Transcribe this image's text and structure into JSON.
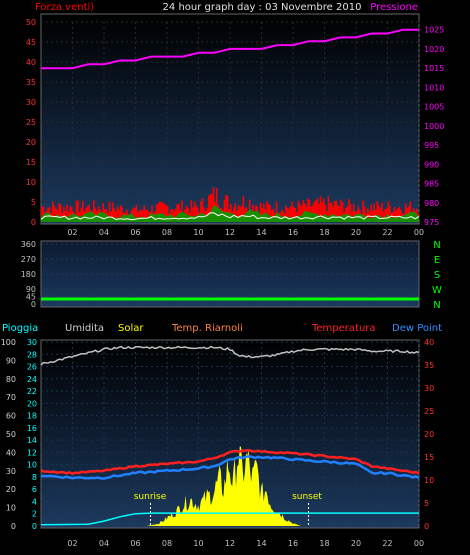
{
  "header": {
    "left_label": "Forza venti)",
    "title": "24 hour graph day : 03 Novembre 2010",
    "right_label": "Pressione"
  },
  "legend_bottom": {
    "pioggia": "Pioggia",
    "umidita": "Umidita",
    "solar": "Solar",
    "temp_riarnoli": "Temp. Riarnoli",
    "temperatura": "Temperatura",
    "dew_point": "Dew Point"
  },
  "annotations": {
    "sunrise": "sunrise",
    "sunset": "sunset"
  },
  "colors": {
    "wind": "#ff0000",
    "wind_avg": "#ffffff",
    "gust": "#00a000",
    "pressure": "#ff00ff",
    "direction": "#00ff00",
    "temperature": "#ff2020",
    "dew_point": "#2080ff",
    "humidity": "#c0c0c0",
    "solar": "#ffff00",
    "rain": "#00ffff",
    "panel_top": "#000000",
    "panel_bottom": "#1c3a60"
  },
  "chart_data": [
    {
      "type": "line",
      "title": "24 hour graph day : 03 Novembre 2010",
      "x_ticks": [
        "02",
        "04",
        "06",
        "08",
        "10",
        "12",
        "14",
        "16",
        "18",
        "20",
        "22",
        "00"
      ],
      "left_axis": {
        "ylim": [
          0,
          50
        ],
        "ticks": [
          0,
          5,
          10,
          15,
          20,
          25,
          30,
          35,
          40,
          45,
          50
        ]
      },
      "right_axis": {
        "ylim": [
          975,
          1027
        ],
        "ticks": [
          975,
          980,
          985,
          990,
          995,
          1000,
          1005,
          1010,
          1015,
          1020,
          1025
        ]
      },
      "series": [
        {
          "name": "Forza venti)",
          "axis": "left",
          "style": "bars",
          "x": [
            0,
            2,
            4,
            6,
            8,
            10,
            11,
            12,
            13,
            14,
            16,
            18,
            20,
            22,
            24
          ],
          "values": [
            5,
            5,
            5,
            4,
            5,
            5,
            9,
            6,
            7,
            5,
            5,
            6,
            5,
            5,
            5
          ]
        },
        {
          "name": "Pressione",
          "axis": "right",
          "x": [
            0,
            1,
            2,
            3,
            4,
            5,
            6,
            7,
            8,
            9,
            10,
            11,
            12,
            13,
            14,
            15,
            16,
            17,
            18,
            19,
            20,
            21,
            22,
            23,
            24
          ],
          "values": [
            1015,
            1015,
            1015,
            1016,
            1016,
            1017,
            1017,
            1018,
            1018,
            1018,
            1019,
            1019,
            1020,
            1020,
            1020,
            1021,
            1021,
            1022,
            1022,
            1023,
            1023,
            1024,
            1024,
            1025,
            1025
          ]
        }
      ]
    },
    {
      "type": "line",
      "x_ticks": [],
      "left_axis": {
        "ylim": [
          0,
          360
        ],
        "ticks": [
          0,
          45,
          90,
          180,
          270,
          360
        ]
      },
      "right_axis": {
        "labels": [
          "N",
          "W",
          "S",
          "E",
          "N"
        ]
      },
      "series": [
        {
          "name": "direction",
          "x": [
            0,
            24
          ],
          "values": [
            30,
            30
          ]
        }
      ]
    },
    {
      "type": "line",
      "x_ticks": [
        "02",
        "04",
        "06",
        "08",
        "10",
        "12",
        "14",
        "16",
        "18",
        "20",
        "22",
        "00"
      ],
      "left_outer_axis": {
        "ylim": [
          0,
          100
        ],
        "ticks": [
          0,
          10,
          20,
          30,
          40,
          50,
          60,
          70,
          80,
          90,
          100
        ]
      },
      "left_inner_axis": {
        "ylim": [
          0,
          30
        ],
        "ticks": [
          0,
          2,
          4,
          6,
          8,
          10,
          12,
          14,
          16,
          18,
          20,
          22,
          24,
          26,
          28,
          30
        ]
      },
      "right_axis": {
        "ylim": [
          0,
          40
        ],
        "ticks": [
          0,
          5,
          10,
          15,
          20,
          25,
          30,
          35,
          40
        ]
      },
      "series": [
        {
          "name": "Umidita",
          "axis": "left_outer",
          "x": [
            0,
            1,
            2,
            3,
            4,
            5,
            6,
            7,
            8,
            9,
            10,
            11,
            12,
            12.5,
            13,
            14,
            15,
            16,
            17,
            18,
            19,
            20,
            21,
            22,
            23,
            24
          ],
          "values": [
            88,
            90,
            92,
            94,
            96,
            97,
            97,
            97,
            97,
            97,
            97,
            97,
            96,
            93,
            92,
            92,
            93,
            95,
            96,
            96,
            96,
            96,
            95,
            95,
            95,
            94
          ]
        },
        {
          "name": "Temperatura",
          "axis": "right",
          "x": [
            0,
            2,
            4,
            6,
            8,
            10,
            11,
            12,
            13,
            14,
            15,
            16,
            17,
            18,
            20,
            21,
            22,
            23,
            24
          ],
          "values": [
            12,
            11.5,
            12,
            13,
            13.5,
            14,
            14.8,
            16,
            16.5,
            16.2,
            16,
            15.8,
            15.5,
            15.2,
            14.5,
            13,
            12.5,
            12,
            11.5
          ]
        },
        {
          "name": "Dew Point",
          "axis": "right",
          "x": [
            0,
            2,
            4,
            6,
            8,
            10,
            11,
            12,
            13,
            14,
            15,
            16,
            17,
            18,
            20,
            21,
            22,
            23,
            24
          ],
          "values": [
            11,
            10.5,
            10.5,
            11.5,
            12,
            12.5,
            13,
            14.5,
            15,
            15,
            14.8,
            14.5,
            14.2,
            14,
            13.5,
            11.5,
            11.5,
            11,
            10.5
          ]
        },
        {
          "name": "Solar",
          "axis": "left_inner",
          "style": "area",
          "x": [
            6.7,
            7.5,
            8,
            8.5,
            9,
            9.5,
            10,
            10.5,
            11,
            11.3,
            11.6,
            11.9,
            12.2,
            12.5,
            12.8,
            13.1,
            13.4,
            13.7,
            14,
            14.3,
            14.6,
            15,
            15.5,
            16,
            16.5
          ],
          "values": [
            0,
            0.5,
            1.5,
            2.5,
            4,
            5,
            4,
            5.5,
            6.5,
            9,
            7,
            12,
            8,
            14,
            10,
            13,
            9,
            11,
            6,
            7,
            4,
            3,
            1.5,
            0.5,
            0
          ]
        },
        {
          "name": "Pioggia",
          "axis": "left_inner",
          "x": [
            0,
            3,
            4,
            5,
            6,
            7,
            8,
            24
          ],
          "values": [
            0.2,
            0.3,
            0.8,
            1.5,
            2.0,
            2.1,
            2.1,
            2.1
          ]
        }
      ],
      "annotations": [
        {
          "text": "sunrise",
          "x": 7
        },
        {
          "text": "sunset",
          "x": 16.5
        }
      ]
    }
  ]
}
